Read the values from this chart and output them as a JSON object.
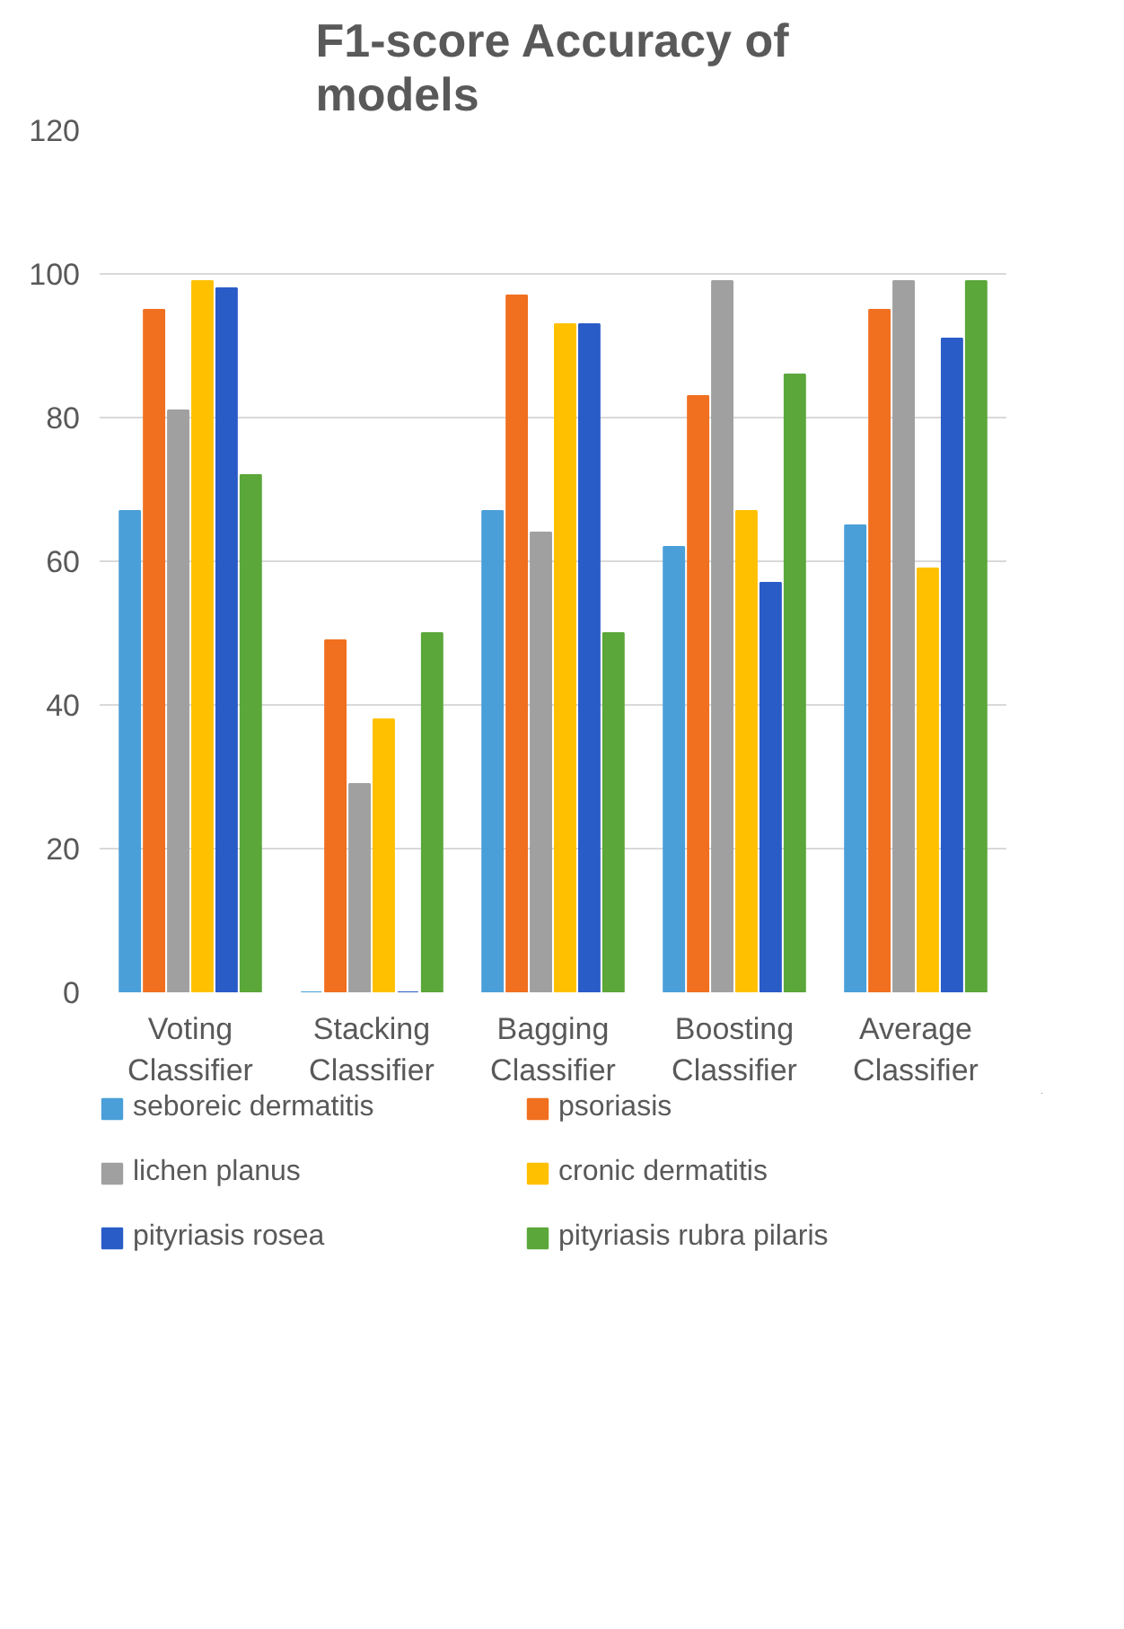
{
  "chart_data": {
    "type": "bar",
    "title": "F1-score Accuracy of models",
    "categories": [
      "Voting Classifier",
      "Stacking Classifier",
      "Bagging Classifier",
      "Boosting Classifier",
      "Average Classifier"
    ],
    "series": [
      {
        "name": "seboreic dermatitis",
        "color": "#4a9fd8",
        "values": [
          67,
          0,
          67,
          62,
          65
        ]
      },
      {
        "name": "psoriasis",
        "color": "#f07020",
        "values": [
          95,
          49,
          97,
          83,
          95
        ]
      },
      {
        "name": "lichen planus",
        "color": "#a0a0a0",
        "values": [
          81,
          29,
          64,
          99,
          99
        ]
      },
      {
        "name": "cronic dermatitis",
        "color": "#ffc000",
        "values": [
          99,
          38,
          93,
          67,
          59
        ]
      },
      {
        "name": "pityriasis rosea",
        "color": "#2a5cc8",
        "values": [
          98,
          0,
          93,
          57,
          91
        ]
      },
      {
        "name": "pityriasis rubra pilaris",
        "color": "#5ba73a",
        "values": [
          72,
          50,
          50,
          86,
          99
        ]
      }
    ],
    "ylim": [
      0,
      120
    ],
    "yticks": [
      0,
      20,
      40,
      60,
      80,
      100,
      120
    ],
    "grid": "y",
    "legend": "bottom"
  }
}
